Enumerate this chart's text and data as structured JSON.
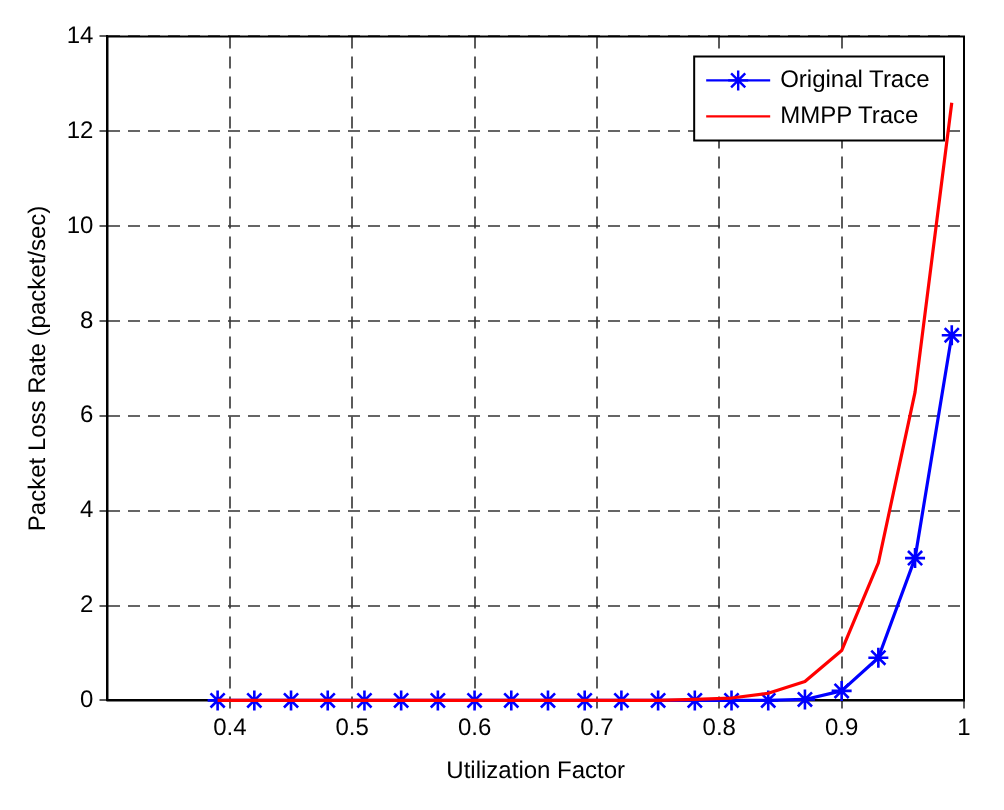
{
  "chart_data": {
    "type": "line",
    "xlabel": "Utilization Factor",
    "ylabel": "Packet Loss Rate (packet/sec)",
    "x": [
      0.39,
      0.42,
      0.45,
      0.48,
      0.51,
      0.54,
      0.57,
      0.6,
      0.63,
      0.66,
      0.69,
      0.72,
      0.75,
      0.78,
      0.81,
      0.84,
      0.87,
      0.9,
      0.93,
      0.96,
      0.99
    ],
    "series": [
      {
        "name": "Original Trace",
        "color": "#0000ff",
        "marker": "cross",
        "values": [
          0,
          0,
          0,
          0,
          0,
          0,
          0,
          0,
          0,
          0,
          0,
          0,
          0,
          0,
          0,
          0,
          0.02,
          0.2,
          0.9,
          3.0,
          7.7
        ]
      },
      {
        "name": "MMPP Trace",
        "color": "#ff0000",
        "marker": "none",
        "values": [
          0,
          0,
          0,
          0,
          0,
          0,
          0,
          0,
          0,
          0,
          0,
          0,
          0,
          0.02,
          0.05,
          0.15,
          0.4,
          1.05,
          2.9,
          6.5,
          12.6
        ]
      }
    ],
    "xlim": [
      0.3,
      1.0
    ],
    "xticks": [
      0.4,
      0.5,
      0.6,
      0.7,
      0.8,
      0.9,
      1
    ],
    "ylim": [
      0,
      14
    ],
    "yticks": [
      0,
      2,
      4,
      6,
      8,
      10,
      12,
      14
    ],
    "grid": true,
    "legend": "top right",
    "line_style": "solid"
  }
}
